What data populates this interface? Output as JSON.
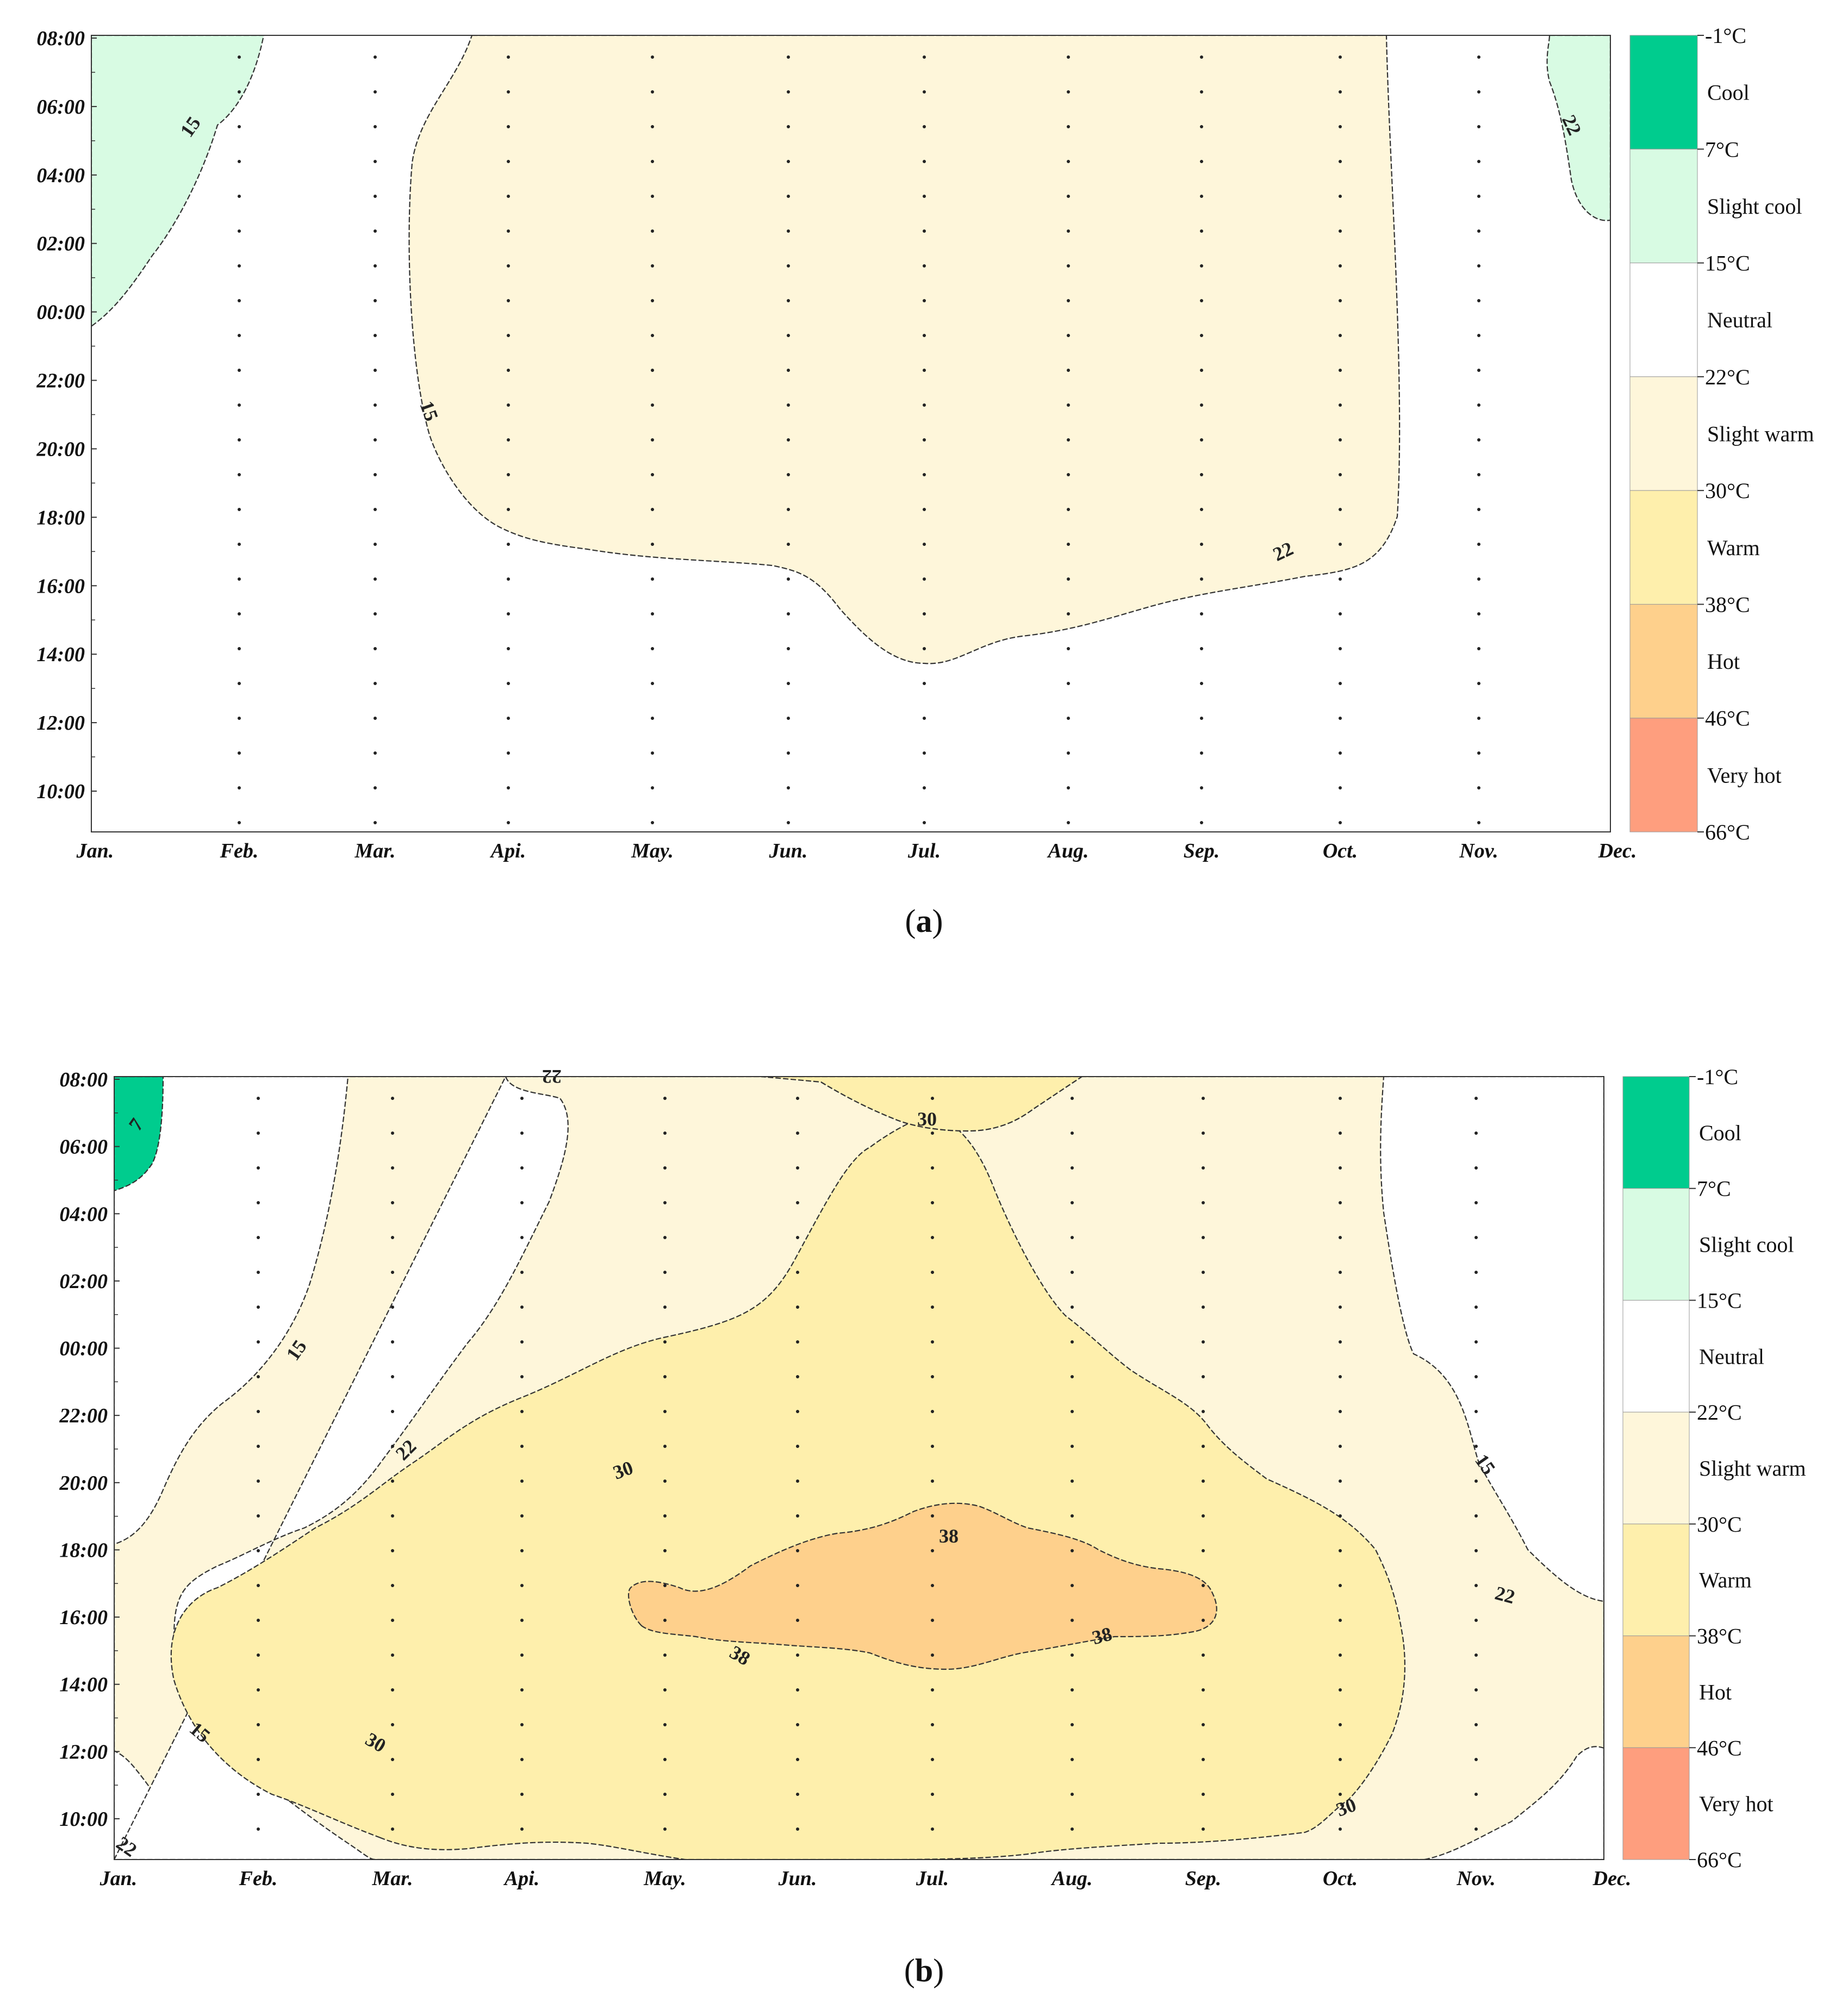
{
  "chart_data": [
    {
      "panel": "a",
      "caption_letter": "a",
      "type": "contour",
      "x_ticks": [
        "Jan.",
        "Feb.",
        "Mar.",
        "Api.",
        "May.",
        "Jun.",
        "Jul.",
        "Aug.",
        "Sep.",
        "Oct.",
        "Nov.",
        "Dec."
      ],
      "y_ticks": [
        "08:00",
        "06:00",
        "04:00",
        "02:00",
        "00:00",
        "22:00",
        "20:00",
        "18:00",
        "16:00",
        "14:00",
        "12:00",
        "10:00"
      ],
      "legend": [
        {
          "range": [
            -1,
            7
          ],
          "label": "Cool",
          "color": "#00cc8e"
        },
        {
          "range": [
            7,
            15
          ],
          "label": "Slight cool",
          "color": "#d8fbe3"
        },
        {
          "range": [
            15,
            22
          ],
          "label": "Neutral",
          "color": "#ffffff"
        },
        {
          "range": [
            22,
            30
          ],
          "label": "Slight warm",
          "color": "#fef6da"
        },
        {
          "range": [
            30,
            38
          ],
          "label": "Warm",
          "color": "#feefac"
        },
        {
          "range": [
            38,
            46
          ],
          "label": "Hot",
          "color": "#fed08c"
        },
        {
          "range": [
            46,
            66
          ],
          "label": "Very hot",
          "color": "#fe9e7e"
        }
      ],
      "legend_bounds": [
        "-1°C",
        "7°C",
        "15°C",
        "22°C",
        "30°C",
        "38°C",
        "46°C",
        "66°C"
      ],
      "contour_labels": [
        "15",
        "15",
        "22",
        "22"
      ],
      "regions": [
        {
          "level": "Slight cool",
          "months": [
            "Jan.",
            "Feb."
          ],
          "hours": "23:30–08:00"
        },
        {
          "level": "Slight warm",
          "months": [
            "Mar.",
            "Oct."
          ],
          "hours": "14:00–08:00"
        },
        {
          "level": "Slight cool",
          "months": [
            "Dec."
          ],
          "hours": "03:00–08:00"
        }
      ]
    },
    {
      "panel": "b",
      "caption_letter": "b",
      "type": "contour",
      "x_ticks": [
        "Jan.",
        "Feb.",
        "Mar.",
        "Api.",
        "May.",
        "Jun.",
        "Jul.",
        "Aug.",
        "Sep.",
        "Oct.",
        "Nov.",
        "Dec."
      ],
      "y_ticks": [
        "08:00",
        "06:00",
        "04:00",
        "02:00",
        "00:00",
        "22:00",
        "20:00",
        "18:00",
        "16:00",
        "14:00",
        "12:00",
        "10:00"
      ],
      "legend": [
        {
          "range": [
            -1,
            7
          ],
          "label": "Cool",
          "color": "#00cc8e"
        },
        {
          "range": [
            7,
            15
          ],
          "label": "Slight cool",
          "color": "#d8fbe3"
        },
        {
          "range": [
            15,
            22
          ],
          "label": "Neutral",
          "color": "#ffffff"
        },
        {
          "range": [
            22,
            30
          ],
          "label": "Slight warm",
          "color": "#fef6da"
        },
        {
          "range": [
            30,
            38
          ],
          "label": "Warm",
          "color": "#feefac"
        },
        {
          "range": [
            38,
            46
          ],
          "label": "Hot",
          "color": "#fed08c"
        },
        {
          "range": [
            46,
            66
          ],
          "label": "Very hot",
          "color": "#fe9e7e"
        }
      ],
      "legend_bounds": [
        "-1°C",
        "7°C",
        "15°C",
        "22°C",
        "30°C",
        "38°C",
        "46°C",
        "66°C"
      ],
      "contour_labels": [
        "7",
        "15",
        "22",
        "30",
        "30",
        "22",
        "30",
        "38",
        "38",
        "38",
        "30",
        "22",
        "15",
        "15",
        "22"
      ],
      "regions": [
        {
          "level": "Cool",
          "months": [
            "Jan."
          ],
          "hours": "04:45–08:00"
        },
        {
          "level": "Slight cool",
          "months": [
            "Jan.",
            "Feb."
          ],
          "hours": "17:30–08:00"
        },
        {
          "level": "Slight warm",
          "months": [
            "Jan.",
            "Dec."
          ],
          "hours": "09:00–08:00"
        },
        {
          "level": "Warm",
          "months": [
            "Mar.",
            "Oct."
          ],
          "hours": "09:00–04:00"
        },
        {
          "level": "Hot",
          "months": [
            "May.",
            "Sep."
          ],
          "hours": "13:30–18:30"
        },
        {
          "level": "Slight cool",
          "months": [
            "Dec."
          ],
          "hours": "18:00–08:00"
        }
      ]
    }
  ]
}
